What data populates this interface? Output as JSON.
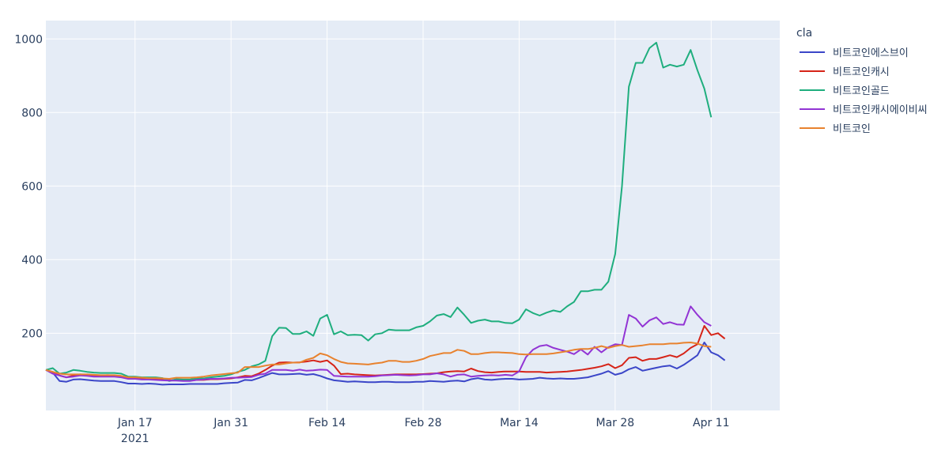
{
  "chart_data": {
    "type": "line",
    "title": "",
    "xlabel": "",
    "ylabel": "",
    "legend_title": "cla",
    "legend_position": "right",
    "grid": true,
    "xlim": [
      "2021-01-04",
      "2021-04-21"
    ],
    "ylim": [
      -10,
      1050
    ],
    "x_ticks": [
      {
        "date": "2021-01-17",
        "label": "Jan 17",
        "sublabel": "2021"
      },
      {
        "date": "2021-01-31",
        "label": "Jan 31",
        "sublabel": ""
      },
      {
        "date": "2021-02-14",
        "label": "Feb 14",
        "sublabel": ""
      },
      {
        "date": "2021-02-28",
        "label": "Feb 28",
        "sublabel": ""
      },
      {
        "date": "2021-03-14",
        "label": "Mar 14",
        "sublabel": ""
      },
      {
        "date": "2021-03-28",
        "label": "Mar 28",
        "sublabel": ""
      },
      {
        "date": "2021-04-11",
        "label": "Apr 11",
        "sublabel": ""
      }
    ],
    "y_ticks": [
      200,
      400,
      600,
      800,
      1000
    ],
    "x_start": "2021-01-04",
    "series": [
      {
        "name": "비트코인에스브이",
        "color": "#3b46c8",
        "values": [
          100,
          93,
          70,
          68,
          74,
          75,
          73,
          71,
          70,
          70,
          70,
          67,
          63,
          63,
          62,
          63,
          62,
          60,
          61,
          61,
          61,
          62,
          62,
          62,
          62,
          62,
          64,
          65,
          66,
          73,
          72,
          78,
          85,
          92,
          88,
          88,
          89,
          90,
          87,
          89,
          84,
          77,
          72,
          70,
          68,
          69,
          68,
          67,
          67,
          68,
          68,
          67,
          67,
          67,
          68,
          68,
          70,
          69,
          68,
          70,
          71,
          69,
          75,
          78,
          74,
          73,
          75,
          76,
          76,
          74,
          75,
          76,
          79,
          77,
          76,
          77,
          76,
          76,
          78,
          80,
          85,
          90,
          97,
          87,
          92,
          102,
          108,
          98,
          102,
          106,
          110,
          112,
          104,
          114,
          127,
          140,
          175,
          148,
          140,
          126
        ]
      },
      {
        "name": "비트코인캐시",
        "color": "#d62418",
        "values": [
          100,
          95,
          85,
          80,
          85,
          88,
          87,
          86,
          85,
          86,
          85,
          83,
          78,
          78,
          77,
          77,
          77,
          75,
          72,
          72,
          71,
          71,
          73,
          73,
          75,
          75,
          76,
          77,
          80,
          84,
          83,
          90,
          100,
          112,
          120,
          121,
          120,
          121,
          123,
          126,
          122,
          126,
          112,
          89,
          90,
          88,
          87,
          86,
          85,
          86,
          87,
          88,
          88,
          88,
          88,
          89,
          90,
          91,
          94,
          96,
          97,
          96,
          104,
          97,
          94,
          93,
          95,
          96,
          96,
          96,
          95,
          95,
          95,
          93,
          94,
          95,
          96,
          98,
          100,
          103,
          106,
          110,
          116,
          105,
          113,
          133,
          135,
          125,
          130,
          130,
          135,
          140,
          135,
          145,
          160,
          170,
          220,
          195,
          200,
          185
        ]
      },
      {
        "name": "비트코인골드",
        "color": "#1fae7e",
        "values": [
          100,
          105,
          90,
          93,
          100,
          98,
          95,
          93,
          92,
          92,
          92,
          90,
          82,
          82,
          80,
          80,
          80,
          78,
          70,
          75,
          74,
          74,
          77,
          77,
          80,
          82,
          84,
          88,
          95,
          100,
          110,
          115,
          125,
          192,
          215,
          214,
          198,
          198,
          205,
          193,
          240,
          250,
          197,
          205,
          195,
          196,
          195,
          180,
          197,
          200,
          210,
          208,
          208,
          208,
          216,
          220,
          232,
          248,
          252,
          244,
          270,
          250,
          228,
          234,
          237,
          232,
          232,
          228,
          227,
          237,
          265,
          255,
          248,
          256,
          262,
          258,
          273,
          285,
          314,
          314,
          318,
          318,
          340,
          415,
          600,
          870,
          935,
          935,
          975,
          990,
          922,
          930,
          925,
          930,
          970,
          915,
          865,
          787
        ]
      },
      {
        "name": "비트코인캐시에이비씨",
        "color": "#9234d4",
        "values": [
          100,
          90,
          85,
          80,
          82,
          85,
          84,
          82,
          82,
          82,
          82,
          80,
          76,
          76,
          74,
          74,
          73,
          72,
          71,
          71,
          70,
          70,
          73,
          74,
          76,
          76,
          77,
          79,
          79,
          80,
          81,
          87,
          90,
          100,
          100,
          100,
          98,
          101,
          98,
          99,
          101,
          100,
          84,
          83,
          82,
          82,
          82,
          82,
          83,
          85,
          86,
          87,
          86,
          85,
          86,
          88,
          88,
          91,
          88,
          82,
          87,
          88,
          82,
          84,
          85,
          86,
          85,
          87,
          85,
          96,
          135,
          155,
          165,
          168,
          160,
          155,
          150,
          143,
          156,
          142,
          163,
          148,
          162,
          170,
          168,
          250,
          240,
          218,
          235,
          243,
          225,
          230,
          224,
          223,
          273,
          250,
          230,
          220
        ]
      },
      {
        "name": "비트코인",
        "color": "#e8822e",
        "values": [
          100,
          95,
          90,
          88,
          88,
          88,
          88,
          87,
          86,
          86,
          86,
          84,
          80,
          80,
          79,
          78,
          78,
          77,
          76,
          79,
          79,
          79,
          80,
          82,
          85,
          87,
          89,
          91,
          93,
          108,
          108,
          108,
          112,
          115,
          115,
          118,
          120,
          120,
          128,
          133,
          145,
          140,
          130,
          122,
          118,
          117,
          116,
          115,
          118,
          120,
          125,
          125,
          122,
          122,
          125,
          130,
          138,
          142,
          146,
          146,
          155,
          152,
          143,
          143,
          146,
          148,
          148,
          147,
          146,
          143,
          142,
          143,
          143,
          143,
          145,
          148,
          151,
          155,
          157,
          157,
          160,
          165,
          160,
          165,
          168,
          163,
          165,
          167,
          170,
          170,
          170,
          172,
          172,
          174,
          175,
          172,
          165,
          163
        ]
      }
    ]
  }
}
